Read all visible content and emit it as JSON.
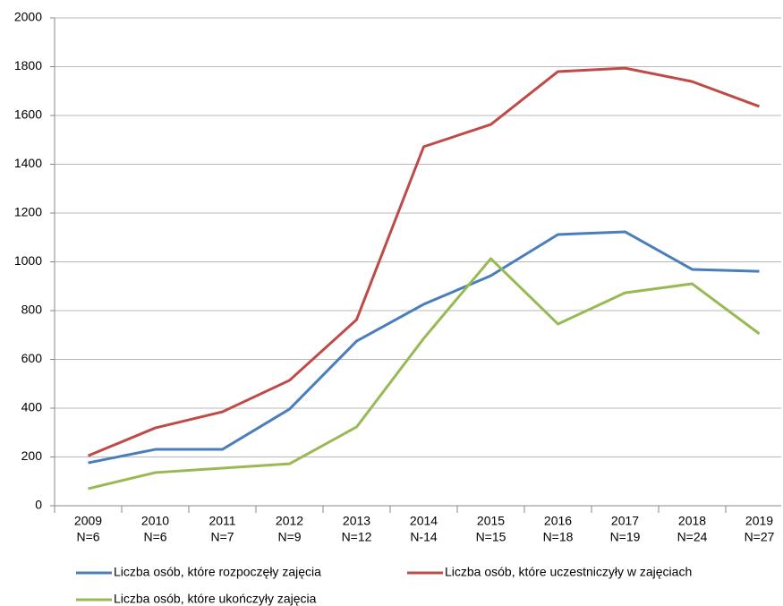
{
  "chart_data": {
    "type": "line",
    "categories": [
      [
        "2009",
        "N=6"
      ],
      [
        "2010",
        "N=6"
      ],
      [
        "2011",
        "N=7"
      ],
      [
        "2012",
        "N=9"
      ],
      [
        "2013",
        "N=12"
      ],
      [
        "2014",
        "N-14"
      ],
      [
        "2015",
        "N=15"
      ],
      [
        "2016",
        "N=18"
      ],
      [
        "2017",
        "N=19"
      ],
      [
        "2018",
        "N=24"
      ],
      [
        "2019",
        "N=27"
      ]
    ],
    "series": [
      {
        "name": "Liczba osób, które rozpoczęły zajęcia",
        "color": "#4a7ebb",
        "values": [
          176,
          231,
          231,
          396,
          675,
          826,
          943,
          1112,
          1123,
          969,
          961
        ]
      },
      {
        "name": "Liczba osób, które uczestniczyły w zajęciach",
        "color": "#be4b48",
        "values": [
          205,
          319,
          385,
          514,
          763,
          1472,
          1563,
          1780,
          1794,
          1739,
          1637
        ]
      },
      {
        "name": "Liczba osób, które ukończyły zajęcia",
        "color": "#98b954",
        "values": [
          70,
          136,
          154,
          172,
          323,
          686,
          1013,
          745,
          873,
          910,
          705
        ]
      }
    ],
    "ylim": [
      0,
      2000
    ],
    "yticks": [
      0,
      200,
      400,
      600,
      800,
      1000,
      1200,
      1400,
      1600,
      1800,
      2000
    ],
    "grid": true,
    "legend": "bottom"
  }
}
